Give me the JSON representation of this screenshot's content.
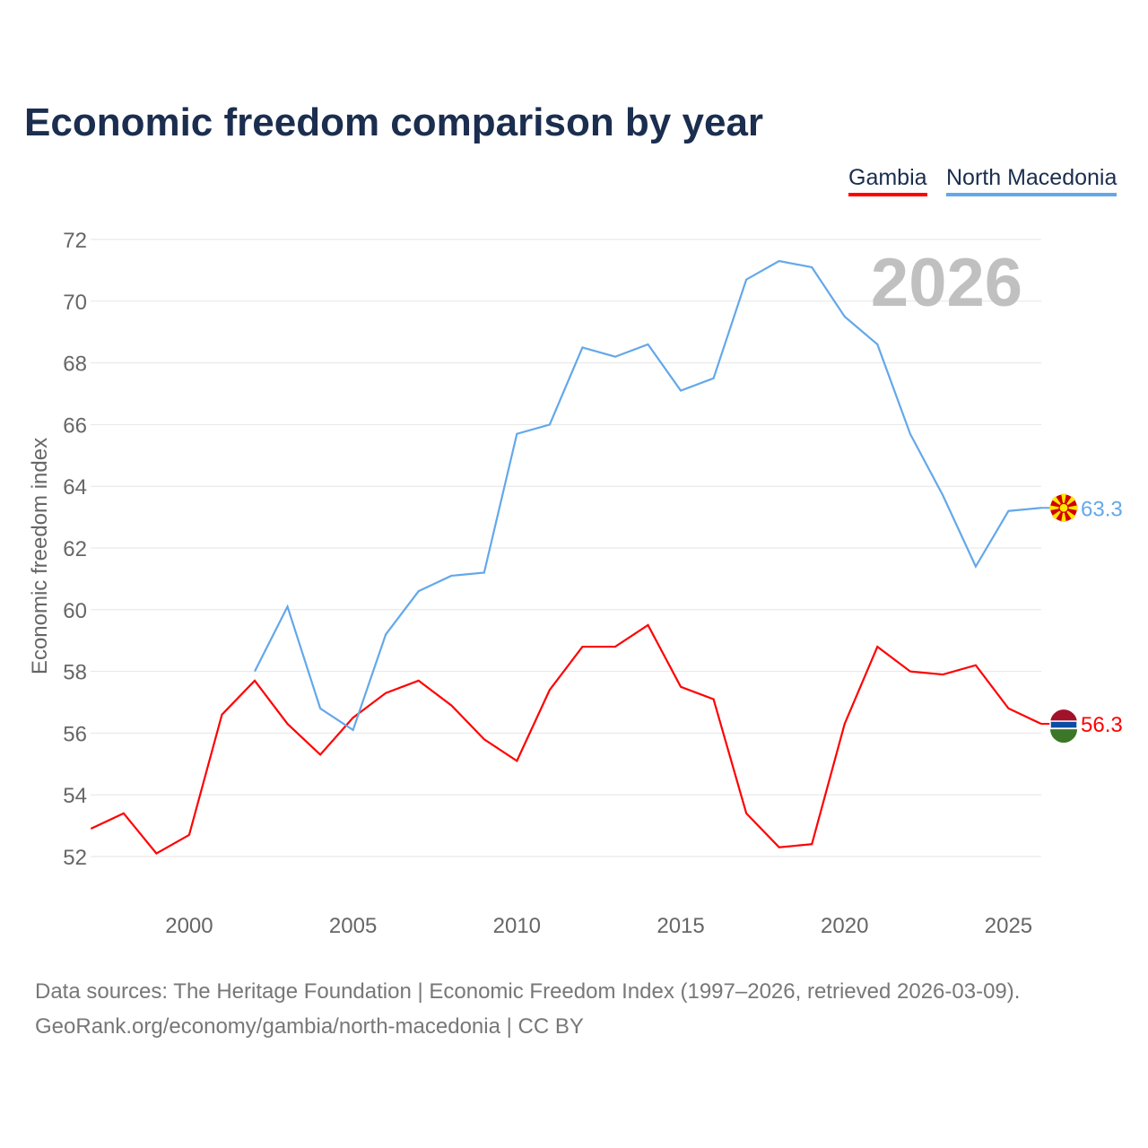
{
  "title": "Economic freedom comparison by year",
  "footer": {
    "line1": "Data sources: The Heritage Foundation | Economic Freedom Index (1997–2026, retrieved 2026-03-09).",
    "line2": "GeoRank.org/economy/gambia/north-macedonia | CC BY"
  },
  "chart_data": {
    "type": "line",
    "title": "Economic freedom comparison by year",
    "ylabel": "Economic freedom index",
    "xlabel": "",
    "year_label": "2026",
    "ylim": [
      52,
      72
    ],
    "xlim": [
      1997,
      2026
    ],
    "yticks": [
      52,
      54,
      56,
      58,
      60,
      62,
      64,
      66,
      68,
      70,
      72
    ],
    "xticks": [
      2000,
      2005,
      2010,
      2015,
      2020,
      2025
    ],
    "legend_position": "top-right",
    "series": [
      {
        "name": "Gambia",
        "color": "#ff0000",
        "end_label": "56.3",
        "x": [
          1997,
          1998,
          1999,
          2000,
          2001,
          2002,
          2003,
          2004,
          2005,
          2006,
          2007,
          2008,
          2009,
          2010,
          2011,
          2012,
          2013,
          2014,
          2015,
          2016,
          2017,
          2018,
          2019,
          2020,
          2021,
          2022,
          2023,
          2024,
          2025,
          2026
        ],
        "values": [
          52.9,
          53.4,
          52.1,
          52.7,
          56.6,
          57.7,
          56.3,
          55.3,
          56.5,
          57.3,
          57.7,
          56.9,
          55.8,
          55.1,
          57.4,
          58.8,
          58.8,
          59.5,
          57.5,
          57.1,
          53.4,
          52.3,
          52.4,
          56.3,
          58.8,
          58.0,
          57.9,
          58.2,
          56.8,
          56.3
        ]
      },
      {
        "name": "North Macedonia",
        "color": "#63a8ea",
        "end_label": "63.3",
        "x": [
          2002,
          2003,
          2004,
          2005,
          2006,
          2007,
          2008,
          2009,
          2010,
          2011,
          2012,
          2013,
          2014,
          2015,
          2016,
          2017,
          2018,
          2019,
          2020,
          2021,
          2022,
          2023,
          2024,
          2025,
          2026
        ],
        "values": [
          58.0,
          60.1,
          56.8,
          56.1,
          59.2,
          60.6,
          61.1,
          61.2,
          65.7,
          66.0,
          68.5,
          68.2,
          68.6,
          67.1,
          67.5,
          70.7,
          71.3,
          71.1,
          69.5,
          68.6,
          65.7,
          63.7,
          61.4,
          63.2,
          63.3
        ]
      }
    ]
  }
}
